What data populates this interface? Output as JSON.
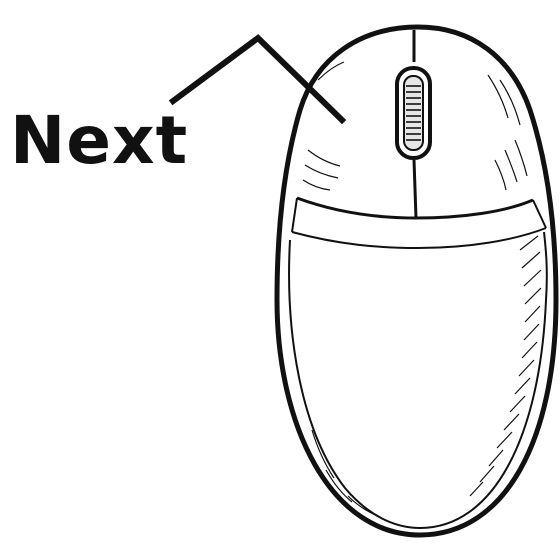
{
  "label": {
    "text": "Next"
  },
  "colors": {
    "ink": "#111111",
    "background": "#ffffff"
  }
}
